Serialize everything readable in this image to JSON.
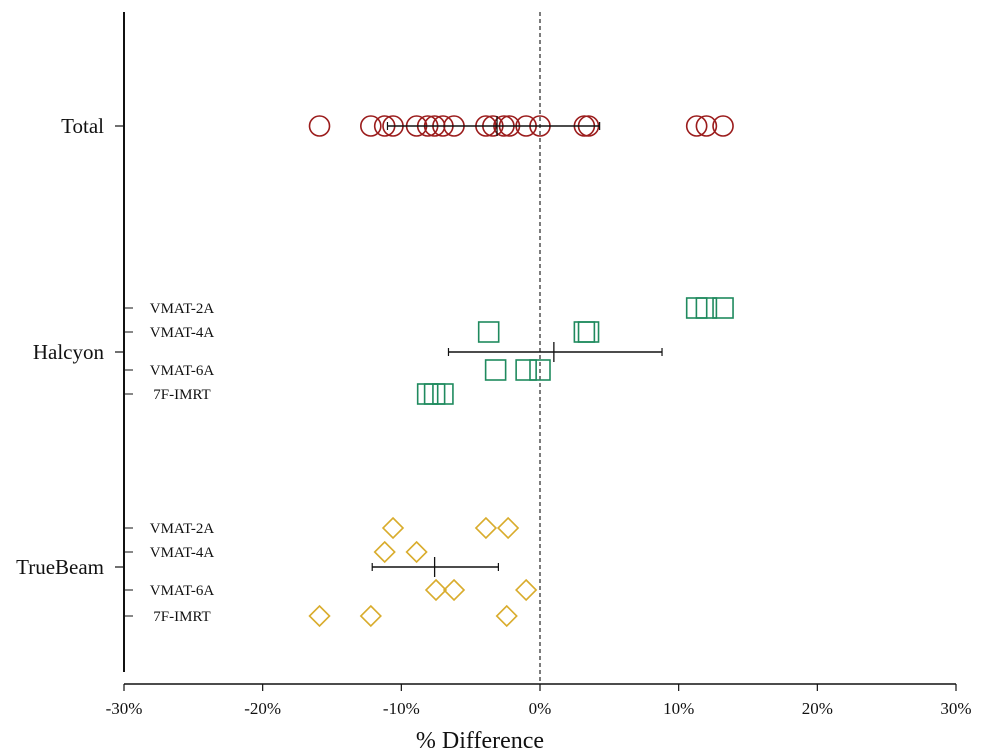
{
  "chart_data": {
    "type": "scatter",
    "xlabel": "% Difference",
    "xlim": [
      -30,
      30
    ],
    "x_ticks": [
      -30,
      -20,
      -10,
      0,
      10,
      20,
      30
    ],
    "x_tick_labels": [
      "-30%",
      "-20%",
      "-10%",
      "0%",
      "10%",
      "20%",
      "30%"
    ],
    "reference_line": {
      "x": 0,
      "style": "dashed"
    },
    "groups": [
      {
        "name": "Total",
        "marker": "circle",
        "color": "#9b1c1c",
        "subrows": [],
        "points": [
          {
            "row": null,
            "x": -15.9
          },
          {
            "row": null,
            "x": -12.2
          },
          {
            "row": null,
            "x": -11.2
          },
          {
            "row": null,
            "x": -10.6
          },
          {
            "row": null,
            "x": -8.9
          },
          {
            "row": null,
            "x": -8.1
          },
          {
            "row": null,
            "x": -7.6
          },
          {
            "row": null,
            "x": -7.0
          },
          {
            "row": null,
            "x": -6.2
          },
          {
            "row": null,
            "x": -3.9
          },
          {
            "row": null,
            "x": -3.4
          },
          {
            "row": null,
            "x": -2.6
          },
          {
            "row": null,
            "x": -2.2
          },
          {
            "row": null,
            "x": -1.0
          },
          {
            "row": null,
            "x": 0.0
          },
          {
            "row": null,
            "x": 3.2
          },
          {
            "row": null,
            "x": 3.5
          },
          {
            "row": null,
            "x": 11.3
          },
          {
            "row": null,
            "x": 12.0
          },
          {
            "row": null,
            "x": 13.2
          }
        ],
        "mean": -3.1,
        "range": [
          -11.0,
          4.3
        ]
      },
      {
        "name": "Halcyon",
        "marker": "square",
        "color": "#1f8a5e",
        "subrows": [
          "VMAT-2A",
          "VMAT-4A",
          "VMAT-6A",
          "7F-IMRT"
        ],
        "points": [
          {
            "row": 0,
            "x": 11.3
          },
          {
            "row": 0,
            "x": 12.0
          },
          {
            "row": 0,
            "x": 13.2
          },
          {
            "row": 1,
            "x": -3.7
          },
          {
            "row": 1,
            "x": 3.2
          },
          {
            "row": 1,
            "x": 3.5
          },
          {
            "row": 2,
            "x": -3.2
          },
          {
            "row": 2,
            "x": -1.0
          },
          {
            "row": 2,
            "x": 0.0
          },
          {
            "row": 3,
            "x": -8.1
          },
          {
            "row": 3,
            "x": -7.6
          },
          {
            "row": 3,
            "x": -7.0
          }
        ],
        "mean": 1.0,
        "range": [
          -6.6,
          8.8
        ]
      },
      {
        "name": "TrueBeam",
        "marker": "diamond",
        "color": "#d9ac2c",
        "subrows": [
          "VMAT-2A",
          "VMAT-4A",
          "VMAT-6A",
          "7F-IMRT"
        ],
        "points": [
          {
            "row": 0,
            "x": -10.6
          },
          {
            "row": 0,
            "x": -3.9
          },
          {
            "row": 0,
            "x": -2.3
          },
          {
            "row": 1,
            "x": -11.2
          },
          {
            "row": 1,
            "x": -8.9
          },
          {
            "row": 2,
            "x": -7.5
          },
          {
            "row": 2,
            "x": -6.2
          },
          {
            "row": 2,
            "x": -1.0
          },
          {
            "row": 3,
            "x": -15.9
          },
          {
            "row": 3,
            "x": -12.2
          },
          {
            "row": 3,
            "x": -2.4
          }
        ],
        "mean": -7.6,
        "range": [
          -12.1,
          -3.0
        ]
      }
    ]
  }
}
